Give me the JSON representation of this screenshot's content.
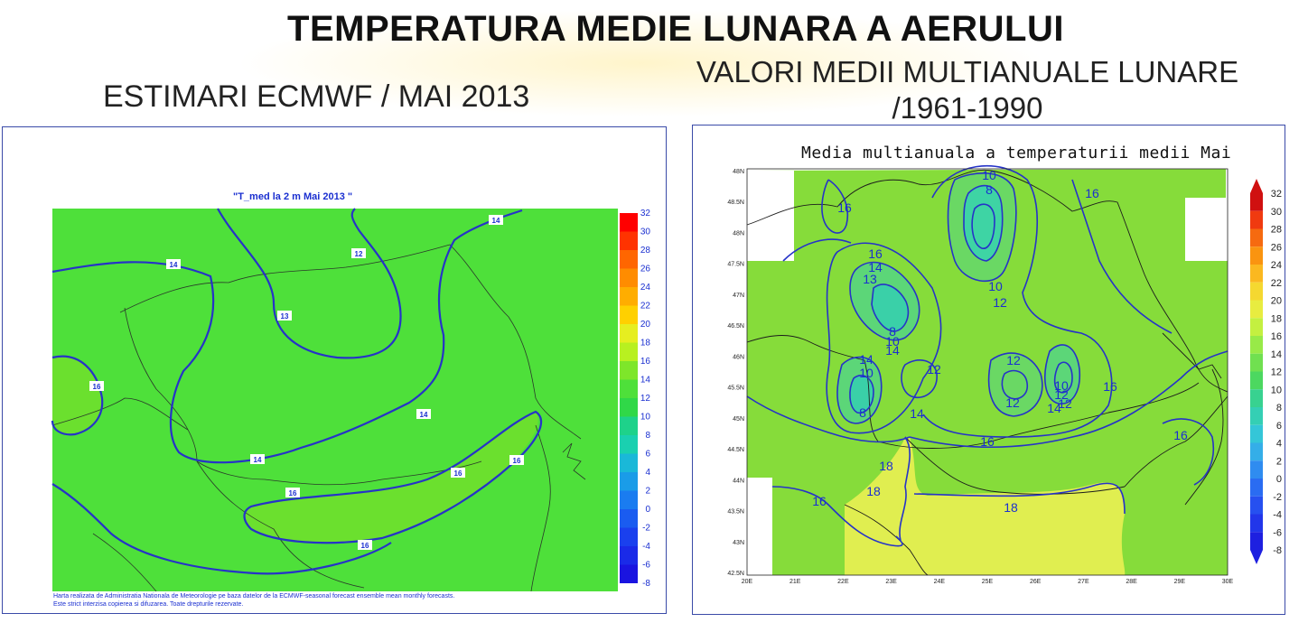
{
  "page": {
    "main_title": "TEMPERATURA MEDIE LUNARA A AERULUI",
    "left_title": "ESTIMARI ECMWF / MAI 2013",
    "right_title_line1": "VALORI MEDII MULTIANUALE LUNARE",
    "right_title_line2": "/1961-1990"
  },
  "left_map": {
    "plot_title": "\"T_med la 2 m Mai 2013 \"",
    "fill_color": "#4ee03a",
    "contour_color": "#2633c8",
    "contour_labels": [
      "14",
      "12",
      "13",
      "14",
      "16",
      "14",
      "16",
      "16",
      "16",
      "14",
      "16"
    ],
    "colorbar": {
      "ticks": [
        "32",
        "30",
        "28",
        "26",
        "24",
        "22",
        "20",
        "18",
        "16",
        "14",
        "12",
        "10",
        "8",
        "6",
        "4",
        "2",
        "0",
        "-2",
        "-4",
        "-6",
        "-8"
      ],
      "colors": [
        "#ff0000",
        "#ff3300",
        "#ff6600",
        "#ff8c00",
        "#ffad00",
        "#ffd000",
        "#e6ee20",
        "#b8f020",
        "#7ee62a",
        "#4ee03a",
        "#30d848",
        "#1ed28a",
        "#1ad0b0",
        "#1ab8d8",
        "#1a9ce8",
        "#1a7cf0",
        "#1a5cf0",
        "#1a40ee",
        "#1a2ae8",
        "#1a14e0"
      ]
    },
    "footer_line1": "Harta realizata de Administratia Nationala de Meteorologie pe baza datelor de la ECMWF-seasonal forecast ensemble mean monthly forecasts.",
    "footer_line2": "Este strict interzisa copierea si difuzarea. Toate drepturile rezervate."
  },
  "right_map": {
    "plot_title": "Media multianuala a temperaturii medii Mai",
    "contour_color": "#2633c8",
    "lat_labels": [
      "48N",
      "48.5N",
      "48N",
      "47.5N",
      "47N",
      "46.5N",
      "46N",
      "45.5N",
      "45N",
      "44.5N",
      "44N",
      "43.5N",
      "43N",
      "42.5N"
    ],
    "lon_labels": [
      "20E",
      "21E",
      "22E",
      "23E",
      "24E",
      "25E",
      "26E",
      "27E",
      "28E",
      "29E",
      "30E"
    ],
    "contour_labels": [
      "10",
      "8",
      "16",
      "16",
      "16",
      "14",
      "13",
      "10",
      "12",
      "8",
      "10",
      "14",
      "14",
      "10",
      "12",
      "12",
      "8",
      "14",
      "12",
      "10",
      "12",
      "14",
      "12",
      "16",
      "16",
      "16",
      "18",
      "18",
      "16",
      "18"
    ],
    "colorbar": {
      "ticks": [
        "32",
        "30",
        "28",
        "26",
        "24",
        "22",
        "20",
        "18",
        "16",
        "14",
        "12",
        "10",
        "8",
        "6",
        "4",
        "2",
        "0",
        "-2",
        "-4",
        "-6",
        "-8"
      ],
      "colors": [
        "#d01010",
        "#f03a10",
        "#f66a10",
        "#fa9410",
        "#fbb820",
        "#f5d830",
        "#e8ec40",
        "#c4f040",
        "#98ea48",
        "#70e050",
        "#4cd860",
        "#38d290",
        "#34cfb4",
        "#34c6d8",
        "#34aee8",
        "#2f8cf0",
        "#2a6cf2",
        "#2650f0",
        "#2236ea",
        "#1e20e0"
      ]
    }
  }
}
